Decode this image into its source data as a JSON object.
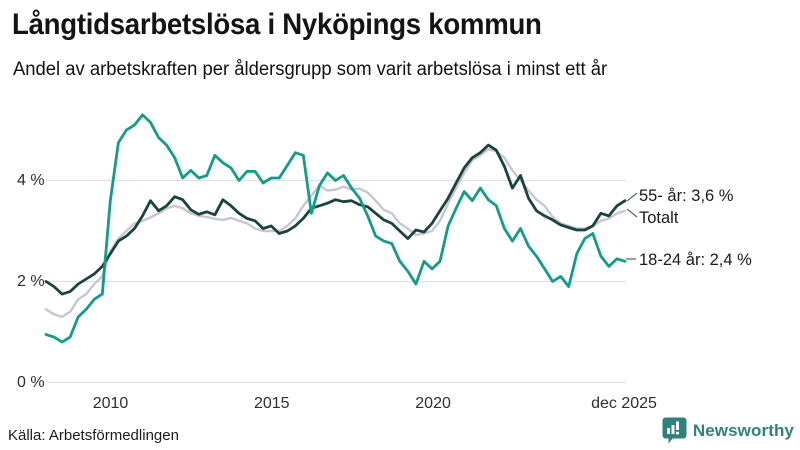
{
  "chart_data": {
    "type": "line",
    "title": "Långtidsarbetslösa i Nyköpings kommun",
    "subtitle": "Andel av arbetskraften per åldersgrupp som varit arbetslösa i minst ett år",
    "unit": "%",
    "grid": true,
    "legend_position": "end-of-line-labels",
    "x_start_year": 2008,
    "x_end_year": 2025.95,
    "ylim": [
      0,
      5.6
    ],
    "x_ticks": [
      {
        "label": "2010",
        "year": 2010
      },
      {
        "label": "2015",
        "year": 2015
      },
      {
        "label": "2020",
        "year": 2020
      },
      {
        "label": "dec 2025",
        "year": 2025.92
      }
    ],
    "y_ticks": [
      {
        "label": "4 %",
        "value": 4
      },
      {
        "label": "2 %",
        "value": 2
      },
      {
        "label": "0 %",
        "value": 0
      }
    ],
    "series": [
      {
        "id": "age-55-plus",
        "name": "55- år",
        "annotation": "55- år: 3,6 %",
        "last_value": "3,6 %",
        "color": "#19433c",
        "z": 2,
        "values": [
          2.0,
          1.9,
          1.75,
          1.8,
          1.95,
          2.05,
          2.15,
          2.3,
          2.55,
          2.8,
          2.9,
          3.05,
          3.3,
          3.6,
          3.4,
          3.5,
          3.68,
          3.62,
          3.42,
          3.33,
          3.38,
          3.32,
          3.62,
          3.5,
          3.35,
          3.25,
          3.2,
          3.05,
          3.1,
          2.95,
          3.0,
          3.1,
          3.25,
          3.45,
          3.5,
          3.55,
          3.62,
          3.58,
          3.6,
          3.52,
          3.48,
          3.35,
          3.22,
          3.15,
          3.0,
          2.85,
          3.02,
          2.98,
          3.15,
          3.4,
          3.65,
          3.95,
          4.25,
          4.45,
          4.55,
          4.7,
          4.6,
          4.28,
          3.85,
          4.1,
          3.65,
          3.4,
          3.3,
          3.22,
          3.12,
          3.07,
          3.02,
          3.02,
          3.1,
          3.35,
          3.3,
          3.5,
          3.6
        ]
      },
      {
        "id": "total",
        "name": "Totalt",
        "annotation": "Totalt",
        "last_value": "3,4 %",
        "color": "#c9c6d3",
        "z": 1,
        "values": [
          1.45,
          1.35,
          1.3,
          1.4,
          1.65,
          1.75,
          1.95,
          2.1,
          2.6,
          2.85,
          3.0,
          3.15,
          3.2,
          3.27,
          3.35,
          3.45,
          3.5,
          3.45,
          3.35,
          3.3,
          3.28,
          3.24,
          3.22,
          3.26,
          3.2,
          3.15,
          3.05,
          3.0,
          3.0,
          3.0,
          3.1,
          3.25,
          3.5,
          3.7,
          3.9,
          3.8,
          3.82,
          3.88,
          3.82,
          3.84,
          3.76,
          3.6,
          3.42,
          3.35,
          3.15,
          3.05,
          2.92,
          2.95,
          3.0,
          3.2,
          3.55,
          3.85,
          4.15,
          4.4,
          4.5,
          4.62,
          4.58,
          4.45,
          4.2,
          4.0,
          3.8,
          3.62,
          3.5,
          3.28,
          3.15,
          3.1,
          3.05,
          3.05,
          3.1,
          3.2,
          3.25,
          3.35,
          3.4
        ]
      },
      {
        "id": "age-18-24",
        "name": "18-24 år",
        "annotation": "18-24 år: 2,4 %",
        "last_value": "2,4 %",
        "color": "#129c89",
        "z": 3,
        "values": [
          0.95,
          0.9,
          0.8,
          0.9,
          1.3,
          1.45,
          1.65,
          1.75,
          3.6,
          4.75,
          5.0,
          5.1,
          5.3,
          5.15,
          4.85,
          4.7,
          4.45,
          4.05,
          4.2,
          4.05,
          4.1,
          4.5,
          4.35,
          4.25,
          4.0,
          4.18,
          4.18,
          3.95,
          4.05,
          4.05,
          4.3,
          4.55,
          4.5,
          3.35,
          3.9,
          4.15,
          4.0,
          4.1,
          3.85,
          3.65,
          3.3,
          2.9,
          2.8,
          2.75,
          2.4,
          2.2,
          1.95,
          2.4,
          2.25,
          2.4,
          3.1,
          3.45,
          3.78,
          3.6,
          3.85,
          3.62,
          3.5,
          3.05,
          2.8,
          3.05,
          2.7,
          2.5,
          2.25,
          2.0,
          2.1,
          1.9,
          2.55,
          2.85,
          2.95,
          2.5,
          2.3,
          2.45,
          2.4
        ]
      }
    ],
    "colors": {
      "grid": "#e0e0e3",
      "axis_text": "#2e2e2e",
      "accent_teal": "#129c89",
      "dark_green": "#19433c",
      "light_gray": "#c9c6d3",
      "brand_teal": "#2d837b"
    }
  },
  "footer": {
    "source": "Källa: Arbetsförmedlingen",
    "brand": "Newsworthy"
  }
}
